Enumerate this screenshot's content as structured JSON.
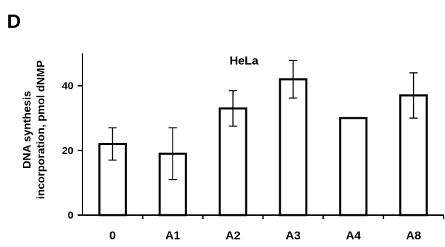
{
  "panel_label": "D",
  "chart_data": {
    "type": "bar",
    "title": "HeLa",
    "xlabel": "",
    "ylabel_lines": [
      "DNA synthesis",
      "incorporation, pmol dNMP"
    ],
    "categories": [
      "0",
      "A1",
      "A2",
      "A3",
      "A4",
      "A8"
    ],
    "values": [
      22,
      19,
      33,
      42,
      30,
      37
    ],
    "error": [
      5,
      8,
      5.5,
      5.8,
      0,
      7
    ],
    "yticks": [
      0,
      20,
      40
    ],
    "ylim": [
      0,
      50
    ],
    "grid": false,
    "bar_fill": "#ffffff",
    "bar_stroke": "#000000"
  }
}
